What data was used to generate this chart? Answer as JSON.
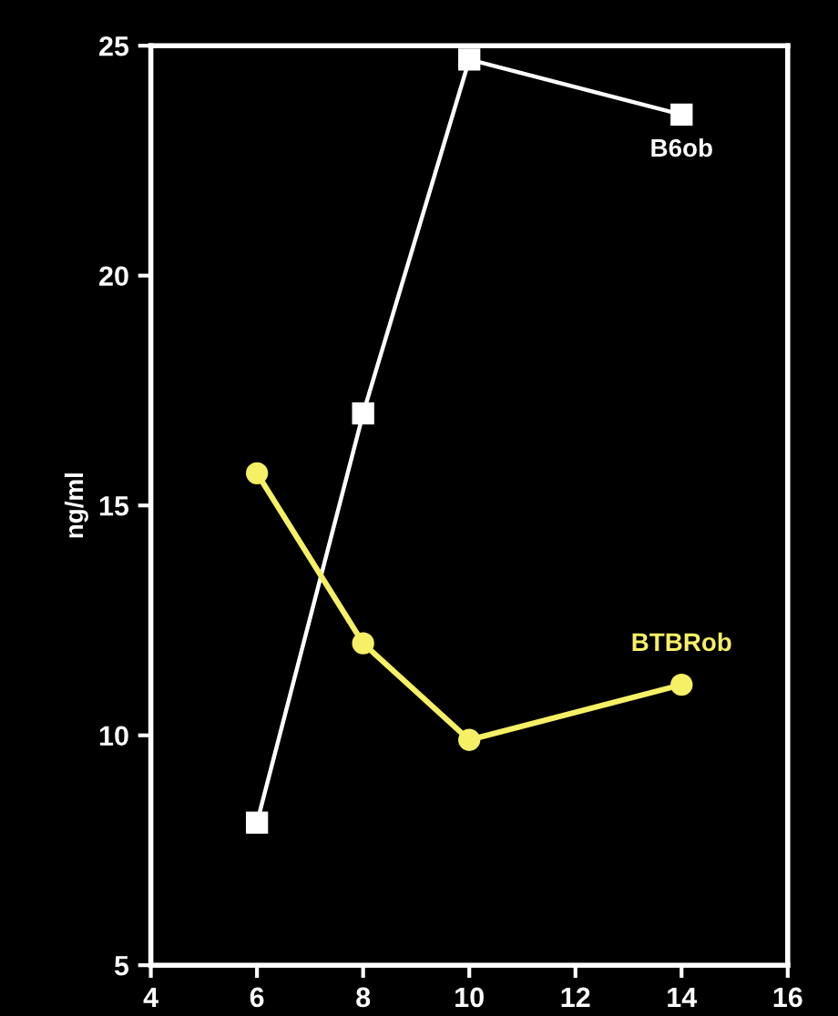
{
  "chart_data": {
    "type": "line",
    "ylabel": "ng/ml",
    "x": [
      6,
      8,
      10,
      14
    ],
    "series": [
      {
        "name": "B6ob",
        "color": "#ffffff",
        "marker": "square",
        "values": [
          8.1,
          17.0,
          24.7,
          23.5
        ]
      },
      {
        "name": "BTBRob",
        "color": "#f5f065",
        "marker": "circle",
        "values": [
          15.7,
          12.0,
          9.9,
          11.1
        ]
      }
    ],
    "xlim": [
      4,
      16
    ],
    "xticks": [
      4,
      6,
      8,
      10,
      12,
      14,
      16
    ],
    "ylim": [
      5,
      25
    ],
    "yticks": [
      5,
      10,
      15,
      20,
      25
    ],
    "grid": false,
    "legend": false
  }
}
